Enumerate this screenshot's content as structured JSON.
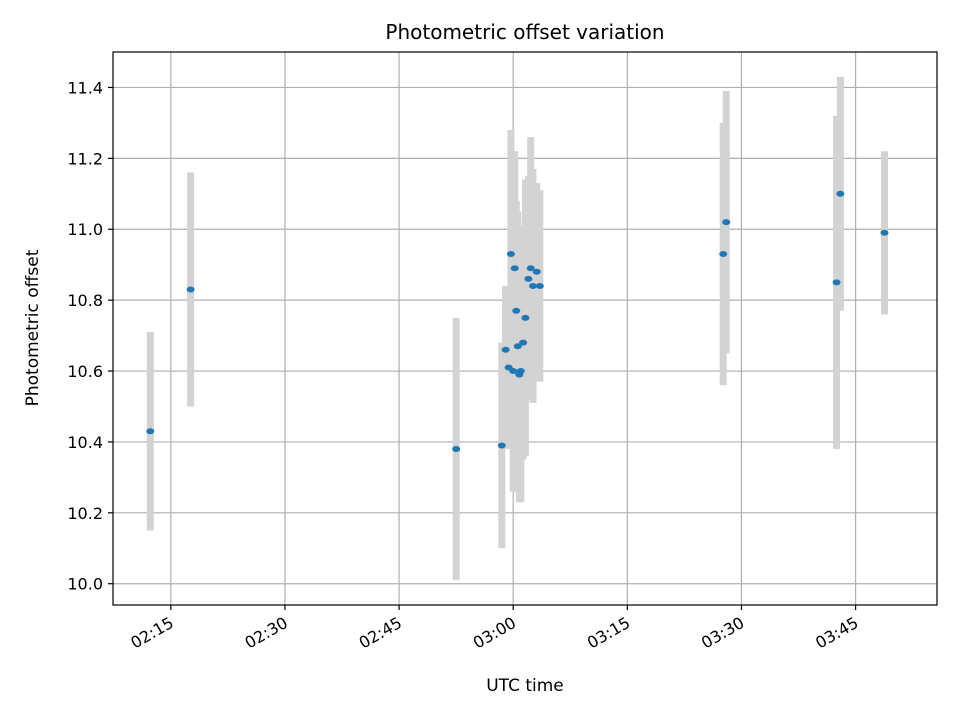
{
  "chart_data": {
    "type": "scatter",
    "title": "Photometric offset variation",
    "xlabel": "UTC time",
    "ylabel": "Photometric offset",
    "x_tick_labels": [
      "02:15",
      "02:30",
      "02:45",
      "03:00",
      "03:15",
      "03:30",
      "03:45"
    ],
    "x_ticks_minutes": [
      135,
      150,
      165,
      180,
      195,
      210,
      225
    ],
    "xlim_minutes": [
      127.4,
      235.7
    ],
    "ylim": [
      9.94,
      11.5
    ],
    "y_ticks": [
      10.0,
      10.2,
      10.4,
      10.6,
      10.8,
      11.0,
      11.2,
      11.4
    ],
    "grid": true,
    "points": [
      {
        "t": 132.3,
        "y": 10.43,
        "err": 0.28
      },
      {
        "t": 137.6,
        "y": 10.83,
        "err": 0.33
      },
      {
        "t": 172.5,
        "y": 10.38,
        "err": 0.37
      },
      {
        "t": 178.5,
        "y": 10.39,
        "err": 0.29
      },
      {
        "t": 179.0,
        "y": 10.66,
        "err": 0.18
      },
      {
        "t": 179.4,
        "y": 10.61,
        "err": 0.23
      },
      {
        "t": 179.7,
        "y": 10.93,
        "err": 0.35
      },
      {
        "t": 180.0,
        "y": 10.6,
        "err": 0.34
      },
      {
        "t": 180.2,
        "y": 10.89,
        "err": 0.33
      },
      {
        "t": 180.4,
        "y": 10.77,
        "err": 0.31
      },
      {
        "t": 180.6,
        "y": 10.67,
        "err": 0.38
      },
      {
        "t": 180.8,
        "y": 10.59,
        "err": 0.36
      },
      {
        "t": 181.0,
        "y": 10.6,
        "err": 0.37
      },
      {
        "t": 181.3,
        "y": 10.68,
        "err": 0.33
      },
      {
        "t": 181.6,
        "y": 10.75,
        "err": 0.39
      },
      {
        "t": 182.0,
        "y": 10.86,
        "err": 0.29
      },
      {
        "t": 182.3,
        "y": 10.89,
        "err": 0.37
      },
      {
        "t": 182.6,
        "y": 10.84,
        "err": 0.33
      },
      {
        "t": 183.1,
        "y": 10.88,
        "err": 0.25
      },
      {
        "t": 183.5,
        "y": 10.84,
        "err": 0.27
      },
      {
        "t": 207.6,
        "y": 10.93,
        "err": 0.37
      },
      {
        "t": 208.0,
        "y": 11.02,
        "err": 0.37
      },
      {
        "t": 222.5,
        "y": 10.85,
        "err": 0.47
      },
      {
        "t": 223.0,
        "y": 11.1,
        "err": 0.33
      },
      {
        "t": 228.8,
        "y": 10.99,
        "err": 0.23
      }
    ],
    "colors": {
      "marker": "#1f77b4",
      "errorbar": "#d3d3d3",
      "grid": "#b0b0b0",
      "axes": "#000000"
    }
  }
}
